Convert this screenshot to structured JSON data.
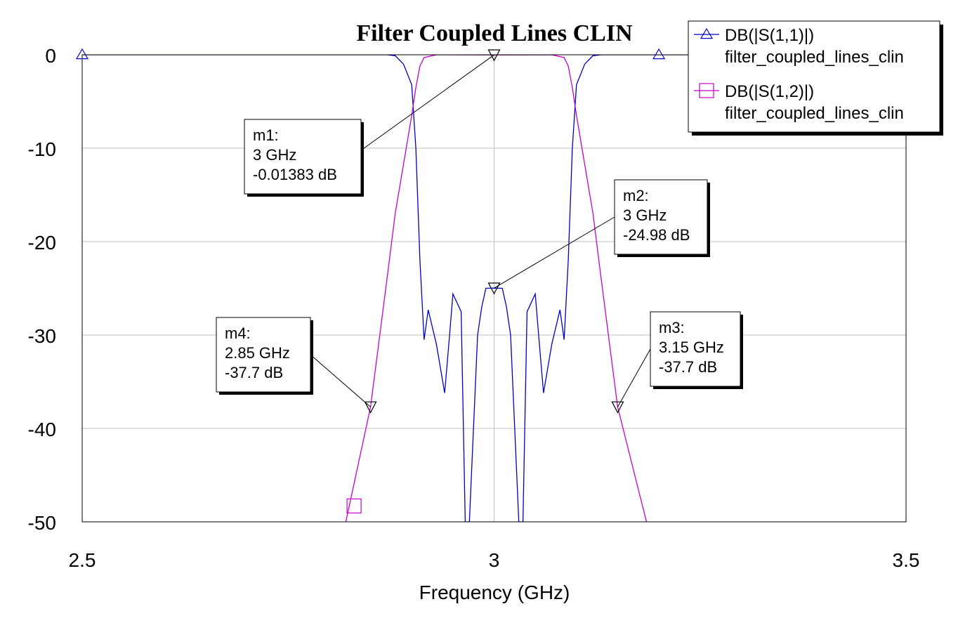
{
  "chart_data": {
    "type": "line",
    "title": "Filter Coupled Lines CLIN",
    "xlabel": "Frequency (GHz)",
    "ylabel": "",
    "xlim": [
      2.5,
      3.5
    ],
    "ylim": [
      -50,
      0
    ],
    "x_ticks": [
      "2.5",
      "3",
      "3.5"
    ],
    "y_ticks": [
      "0",
      "-10",
      "-20",
      "-30",
      "-40",
      "-50"
    ],
    "grid": true,
    "legend_position": "top-right",
    "series": [
      {
        "name": "DB(|S(1,1)|)",
        "subname": "filter_coupled_lines_clin",
        "color": "#0000c8",
        "marker": "triangle-up",
        "x": [
          2.5,
          2.87,
          2.88,
          2.89,
          2.9,
          2.905,
          2.91,
          2.915,
          2.92,
          2.93,
          2.94,
          2.945,
          2.95,
          2.96,
          2.965,
          2.97,
          2.98,
          2.985,
          2.99,
          3.0,
          3.01,
          3.015,
          3.02,
          3.03,
          3.035,
          3.04,
          3.05,
          3.055,
          3.06,
          3.07,
          3.08,
          3.085,
          3.09,
          3.095,
          3.1,
          3.11,
          3.12,
          3.13,
          3.5
        ],
        "y": [
          0,
          0,
          -0.1,
          -1.0,
          -3.2,
          -10,
          -22,
          -30.5,
          -27.3,
          -31,
          -36.2,
          -31,
          -25.6,
          -27.5,
          -50,
          -50,
          -30,
          -27,
          -25,
          -24.98,
          -25,
          -27,
          -30,
          -50,
          -50,
          -27.5,
          -25.6,
          -31,
          -36.2,
          -31,
          -27.3,
          -30.5,
          -22,
          -10,
          -3.2,
          -1.0,
          -0.1,
          0,
          0
        ]
      },
      {
        "name": "DB(|S(1,2)|)",
        "subname": "filter_coupled_lines_clin",
        "color": "#c800c8",
        "marker": "square",
        "x": [
          2.82,
          2.85,
          2.87,
          2.88,
          2.9,
          2.905,
          2.91,
          2.915,
          2.93,
          3.0,
          3.07,
          3.085,
          3.09,
          3.095,
          3.1,
          3.12,
          3.13,
          3.15,
          3.185
        ],
        "y": [
          -50,
          -37.7,
          -24,
          -17,
          -6.5,
          -3.5,
          -1.2,
          -0.3,
          0,
          -0.01383,
          0,
          -0.3,
          -1.2,
          -3.5,
          -6.5,
          -17,
          -24,
          -37.7,
          -50
        ]
      }
    ],
    "series_marker_points": [
      {
        "series": 0,
        "x": 2.5,
        "y": 0
      },
      {
        "series": 0,
        "x": 3.2,
        "y": 0
      },
      {
        "series": 1,
        "x": 2.83,
        "y": -48.3
      }
    ],
    "markers": [
      {
        "id": "m1",
        "lines": [
          "m1:",
          "3 GHz",
          "-0.01383 dB"
        ],
        "x": 3.0,
        "y": -0.01383
      },
      {
        "id": "m2",
        "lines": [
          "m2:",
          "3 GHz",
          "-24.98 dB"
        ],
        "x": 3.0,
        "y": -24.98
      },
      {
        "id": "m3",
        "lines": [
          "m3:",
          "3.15 GHz",
          "-37.7 dB"
        ],
        "x": 3.15,
        "y": -37.7
      },
      {
        "id": "m4",
        "lines": [
          "m4:",
          "2.85 GHz",
          "-37.7 dB"
        ],
        "x": 2.85,
        "y": -37.7
      }
    ]
  }
}
